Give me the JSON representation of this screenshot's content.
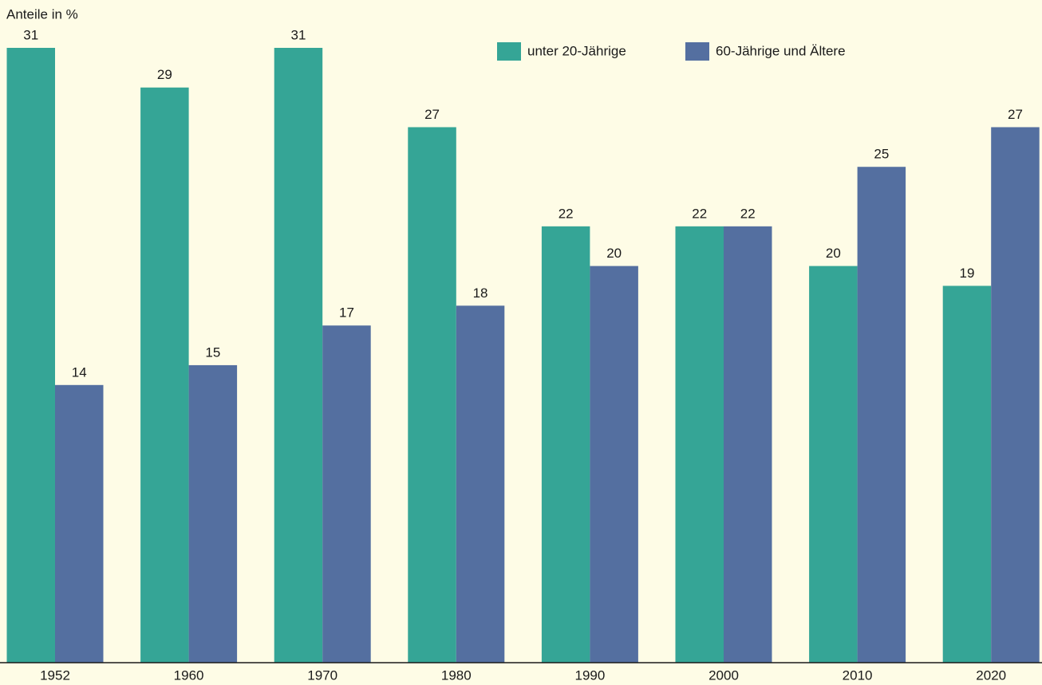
{
  "chart_data": {
    "type": "bar",
    "y_label": "Anteile in %",
    "categories": [
      "1952",
      "1960",
      "1970",
      "1980",
      "1990",
      "2000",
      "2010",
      "2020"
    ],
    "series": [
      {
        "name": "unter 20-Jährige",
        "color": "#35a596",
        "values": [
          31,
          29,
          31,
          27,
          22,
          22,
          20,
          19
        ]
      },
      {
        "name": "60-Jährige und Ältere",
        "color": "#546fa0",
        "values": [
          14,
          15,
          17,
          18,
          20,
          22,
          25,
          27
        ]
      }
    ],
    "ylim": [
      0,
      31
    ]
  }
}
